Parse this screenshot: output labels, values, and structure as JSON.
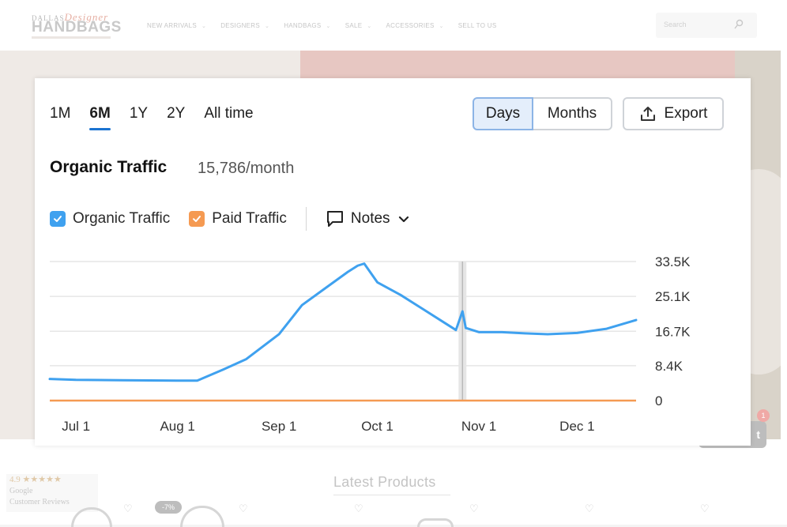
{
  "site": {
    "logo_line1": "DALLAS",
    "logo_script": "Designer",
    "logo_line2": "HANDBAGS",
    "nav": [
      "NEW ARRIVALS",
      "DESIGNERS",
      "HANDBAGS",
      "SALE",
      "ACCESSORIES",
      "SELL TO US"
    ],
    "search_placeholder": "Search",
    "latest_products": "Latest Products",
    "reviews_rating": "4.9 ★★★★★",
    "reviews_source": "Google",
    "reviews_label": "Customer Reviews",
    "discount_badge": "-7%",
    "chat_badge": "1",
    "chat_text": "t"
  },
  "toolbar": {
    "ranges": [
      "1M",
      "6M",
      "1Y",
      "2Y",
      "All time"
    ],
    "active_range": "6M",
    "days_label": "Days",
    "months_label": "Months",
    "export_label": "Export"
  },
  "metric": {
    "title": "Organic Traffic",
    "value": "15,786/month"
  },
  "legend": {
    "organic": "Organic Traffic",
    "paid": "Paid Traffic",
    "notes": "Notes"
  },
  "colors": {
    "organic": "#3fa1ef",
    "paid": "#f59a52",
    "accent": "#1b73d1"
  },
  "chart_data": {
    "type": "line",
    "title": "Organic Traffic",
    "x_tick_labels": [
      "Jul 1",
      "Aug 1",
      "Sep 1",
      "Oct 1",
      "Nov 1",
      "Dec 1"
    ],
    "y_tick_labels": [
      "33.5K",
      "25.1K",
      "16.7K",
      "8.4K",
      "0"
    ],
    "y_ticks": [
      33500,
      25100,
      16700,
      8400,
      0
    ],
    "ylim": [
      0,
      33500
    ],
    "xlim": [
      "2023-06-23",
      "2023-12-19"
    ],
    "grid": true,
    "y_axis_position": "right",
    "marker_date": "2023-10-27",
    "series": [
      {
        "name": "Organic Traffic",
        "x": [
          "2023-06-23",
          "2023-07-01",
          "2023-07-15",
          "2023-08-01",
          "2023-08-07",
          "2023-08-15",
          "2023-08-22",
          "2023-09-01",
          "2023-09-08",
          "2023-09-15",
          "2023-09-22",
          "2023-09-25",
          "2023-09-27",
          "2023-10-01",
          "2023-10-08",
          "2023-10-15",
          "2023-10-22",
          "2023-10-25",
          "2023-10-27",
          "2023-10-28",
          "2023-11-01",
          "2023-11-08",
          "2023-11-15",
          "2023-11-22",
          "2023-12-01",
          "2023-12-10",
          "2023-12-19"
        ],
        "values": [
          5200,
          5000,
          4900,
          4800,
          4800,
          7500,
          10000,
          16000,
          23000,
          27000,
          31000,
          32500,
          33000,
          28500,
          25500,
          22000,
          18500,
          17000,
          21500,
          17500,
          16500,
          16500,
          16200,
          16000,
          16300,
          17300,
          19400
        ]
      },
      {
        "name": "Paid Traffic",
        "x": [
          "2023-06-23",
          "2023-12-19"
        ],
        "values": [
          0,
          0
        ]
      }
    ]
  }
}
